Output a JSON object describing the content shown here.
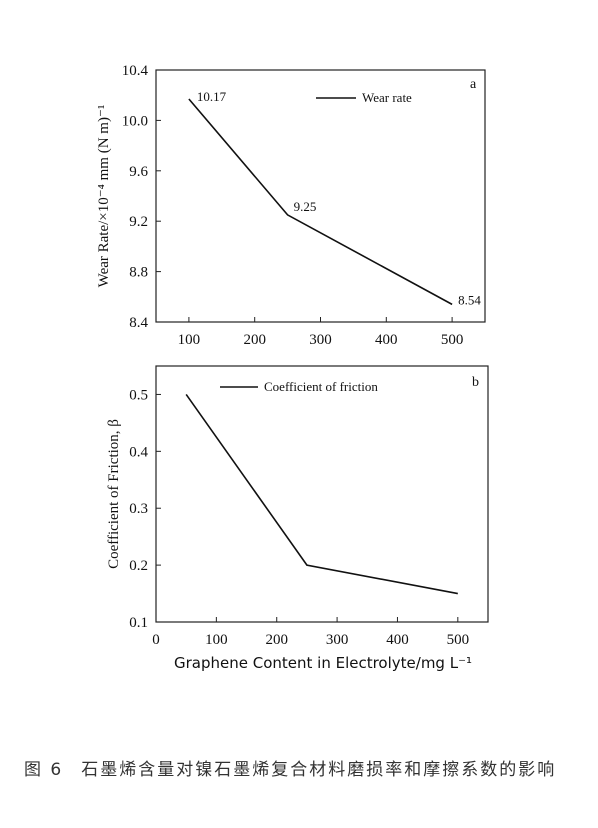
{
  "chart_data": [
    {
      "type": "line",
      "panel_label": "a",
      "x": [
        100,
        250,
        500
      ],
      "series": [
        {
          "name": "Wear rate",
          "values": [
            10.17,
            9.25,
            8.54
          ]
        }
      ],
      "data_labels": [
        "10.17",
        "9.25",
        "8.54"
      ],
      "ylabel": "Wear Rate/×10⁻⁴ mm (N m)⁻¹",
      "xlabel": "",
      "xlim": [
        50,
        550
      ],
      "ylim": [
        8.4,
        10.4
      ],
      "x_ticks": [
        "100",
        "200",
        "300",
        "400",
        "500"
      ],
      "y_ticks": [
        "8.4",
        "8.8",
        "9.2",
        "9.6",
        "10.0",
        "10.4"
      ],
      "legend": "top-right"
    },
    {
      "type": "line",
      "panel_label": "b",
      "x": [
        50,
        250,
        500
      ],
      "series": [
        {
          "name": "Coefficient of friction",
          "values": [
            0.5,
            0.2,
            0.15
          ]
        }
      ],
      "ylabel": "Coefficient of Friction, β",
      "xlabel": "Graphene Content in Electrolyte/mg L⁻¹",
      "xlim": [
        0,
        550
      ],
      "ylim": [
        0.1,
        0.55
      ],
      "x_ticks": [
        "0",
        "100",
        "200",
        "300",
        "400",
        "500"
      ],
      "y_ticks": [
        "0.1",
        "0.2",
        "0.3",
        "0.4",
        "0.5"
      ],
      "legend": "top-left"
    }
  ],
  "caption": {
    "number": "图 6",
    "text": "石墨烯含量对镍石墨烯复合材料磨损率和摩擦系数的影响"
  }
}
